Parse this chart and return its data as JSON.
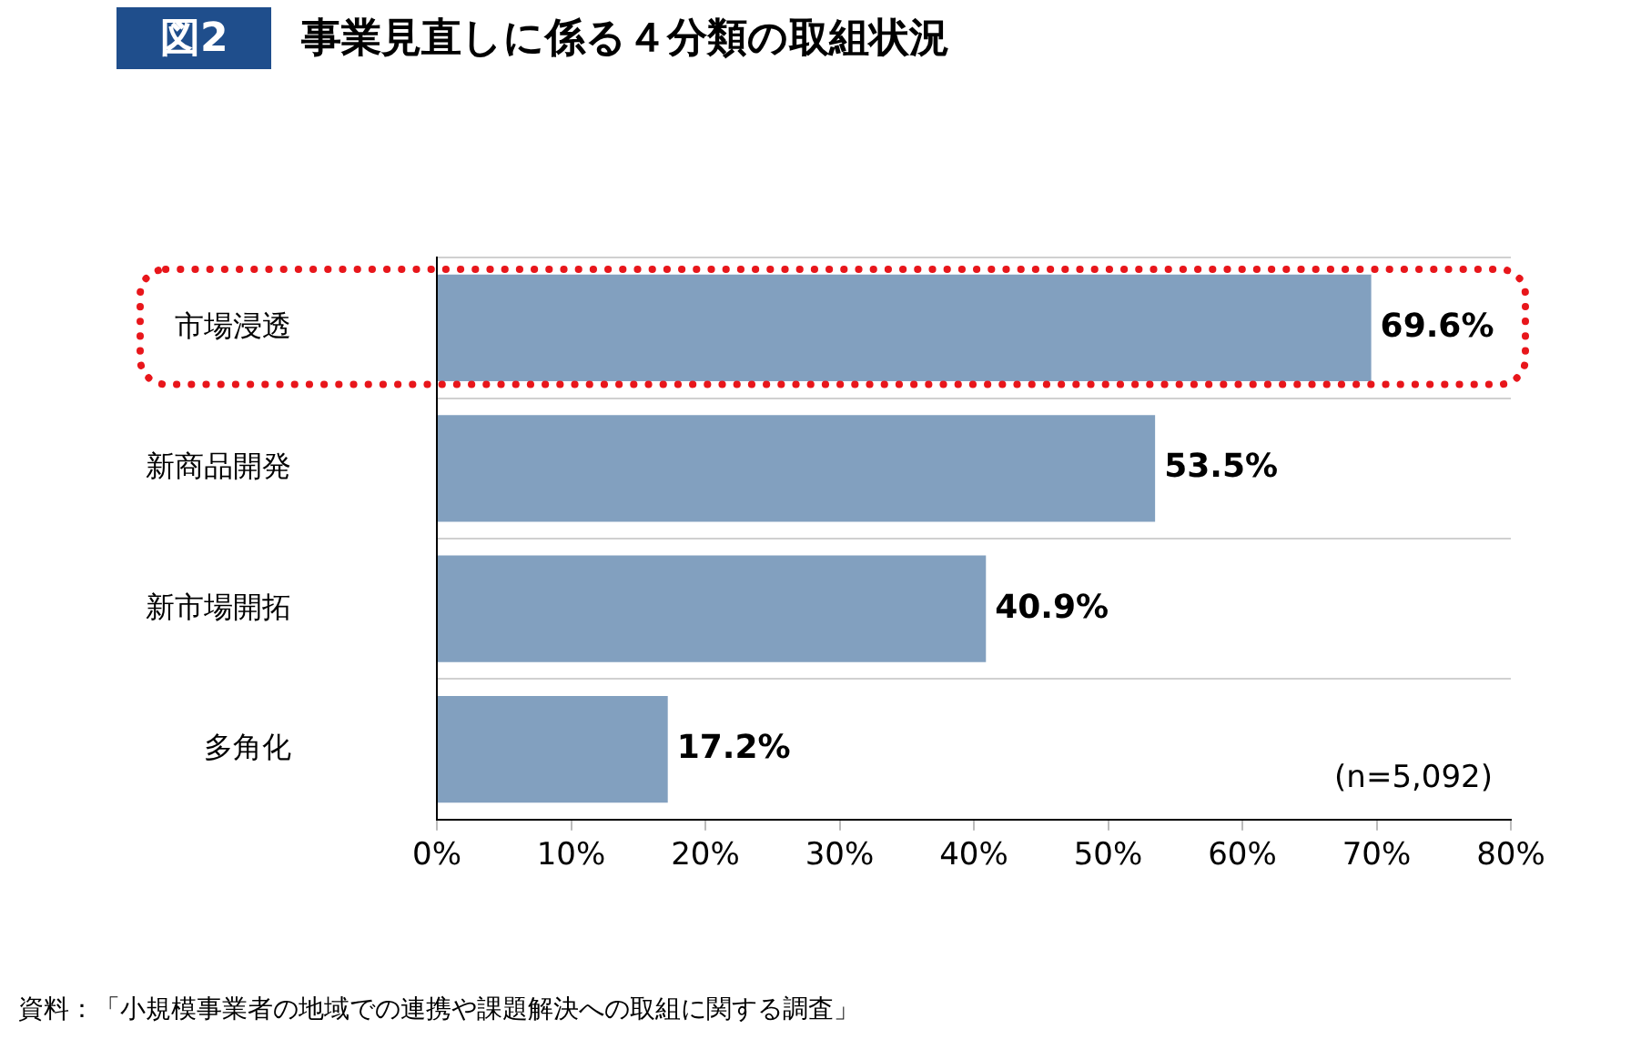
{
  "chart_data": {
    "type": "bar",
    "orientation": "horizontal",
    "title": "図2 事業見直しに係る４分類の取組状況",
    "categories": [
      "市場浸透",
      "新商品開発",
      "新市場開拓",
      "多角化"
    ],
    "values": [
      69.6,
      53.5,
      40.9,
      17.2
    ],
    "color": "#82a0bf",
    "value_labels": [
      "69.6%",
      "53.5%",
      "40.9%",
      "17.2%"
    ],
    "xlim": [
      0,
      80
    ],
    "xticks": [
      {
        "value": 0,
        "label": "0%"
      },
      {
        "value": 10,
        "label": "10%"
      },
      {
        "value": 20,
        "label": "20%"
      },
      {
        "value": 30,
        "label": "30%"
      },
      {
        "value": 40,
        "label": "40%"
      },
      {
        "value": 50,
        "label": "50%"
      },
      {
        "value": 60,
        "label": "60%"
      },
      {
        "value": 70,
        "label": "70%"
      },
      {
        "value": 80,
        "label": "80%"
      }
    ],
    "grid": "y",
    "legend": false,
    "annotations": [
      "(n=5,092)",
      "資料：「小規模事業者の地域での連携や課題解決への取組に関する調査」"
    ]
  }
}
